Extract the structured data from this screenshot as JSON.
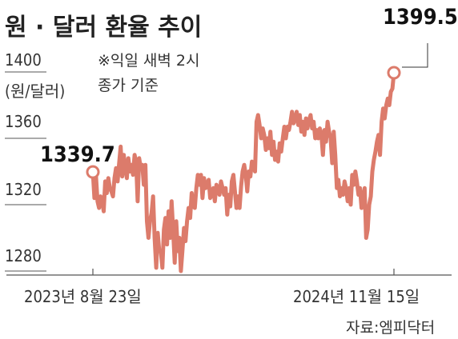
{
  "title": "원 · 달러 환율 추이",
  "note": "※익일 새벽 2시 종가 기준",
  "note_line1": "※익일 새벽 2시",
  "note_line2": "종가 기준",
  "source": "자료:엠피닥터",
  "colors": {
    "line": "#dc7b6b",
    "text": "#222222",
    "axis": "#555555",
    "marker_fill": "#ffffff"
  },
  "chart_data": {
    "type": "line",
    "title": "원 · 달러 환율 추이",
    "ylabel": "(원/달러)",
    "ylim": [
      1270,
      1410
    ],
    "yticks": [
      1280,
      1320,
      1360,
      1400
    ],
    "xlabel": "",
    "x_labels": [
      "2023년 8월 23일",
      "2024년 11월 15일"
    ],
    "start": {
      "date": "2023년 8월 23일",
      "value": 1339.7
    },
    "end": {
      "date": "2024년 11월 15일",
      "value": 1399.5
    },
    "grid": false,
    "series": [
      {
        "values": [
          1339.7,
          1324,
          1337,
          1322,
          1318,
          1325,
          1322,
          1316,
          1334,
          1327,
          1336,
          1330,
          1328,
          1325,
          1336,
          1342,
          1334,
          1345,
          1355,
          1337,
          1350,
          1342,
          1336,
          1348,
          1340,
          1344,
          1338,
          1350,
          1346,
          1322,
          1348,
          1342,
          1344,
          1332,
          1344,
          1310,
          1300,
          1310,
          1315,
          1325,
          1300,
          1282,
          1303,
          1292,
          1292,
          1282,
          1305,
          1312,
          1296,
          1316,
          1300,
          1322,
          1304,
          1285,
          1310,
          1292,
          1300,
          1280,
          1292,
          1306,
          1298,
          1310,
          1318,
          1312,
          1327,
          1319,
          1318,
          1330,
          1338,
          1332,
          1338,
          1324,
          1336,
          1330,
          1332,
          1335,
          1324,
          1326,
          1330,
          1322,
          1332,
          1330,
          1326,
          1334,
          1330,
          1326,
          1330,
          1314,
          1326,
          1319,
          1334,
          1338,
          1328,
          1318,
          1325,
          1318,
          1331,
          1340,
          1344,
          1338,
          1328,
          1340,
          1337,
          1346,
          1344,
          1340,
          1370,
          1374,
          1368,
          1360,
          1366,
          1362,
          1353,
          1360,
          1354,
          1364,
          1350,
          1358,
          1347,
          1352,
          1346,
          1357,
          1352,
          1360,
          1367,
          1360,
          1367,
          1365,
          1370,
          1376,
          1369,
          1372,
          1376,
          1368,
          1374,
          1364,
          1370,
          1362,
          1372,
          1366,
          1371,
          1374,
          1366,
          1370,
          1360,
          1365,
          1360,
          1366,
          1362,
          1350,
          1365,
          1358,
          1370,
          1364,
          1360,
          1345,
          1364,
          1350,
          1330,
          1335,
          1325,
          1330,
          1326,
          1334,
          1330,
          1322,
          1330,
          1320,
          1338,
          1332,
          1340,
          1334,
          1326,
          1330,
          1318,
          1324,
          1330,
          1300,
          1305,
          1320,
          1325,
          1340,
          1347,
          1352,
          1358,
          1362,
          1350,
          1370,
          1378,
          1372,
          1380,
          1384,
          1380,
          1388,
          1390,
          1399.5
        ]
      }
    ]
  }
}
